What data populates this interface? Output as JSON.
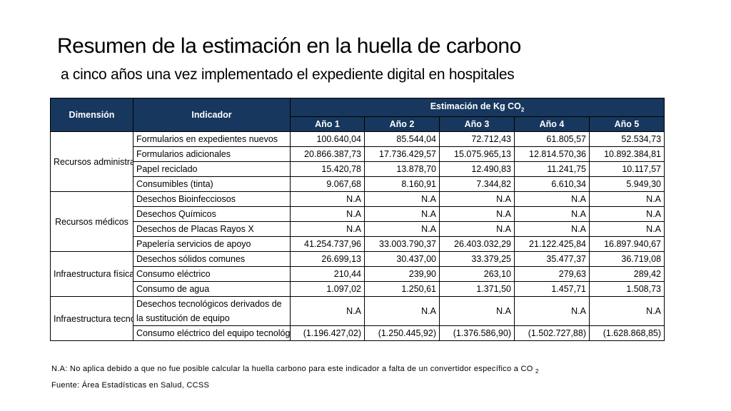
{
  "title": "Resumen de la estimación en la huella de carbono",
  "subtitle": "a cinco años una vez implementado el expediente digital en hospitales",
  "table": {
    "headers": {
      "dimension": "Dimensión",
      "indicator": "Indicador",
      "estimation_prefix": "Estimación de Kg CO",
      "estimation_sub": "2",
      "years": [
        "Año 1",
        "Año 2",
        "Año 3",
        "Año 4",
        "Año 5"
      ]
    },
    "groups": [
      {
        "dimension": "Recursos administrativos",
        "rows": [
          {
            "indicator": "Formularios en expedientes nuevos",
            "values": [
              "100.640,04",
              "85.544,04",
              "72.712,43",
              "61.805,57",
              "52.534,73"
            ]
          },
          {
            "indicator": "Formularios  adicionales",
            "values": [
              "20.866.387,73",
              "17.736.429,57",
              "15.075.965,13",
              "12.814.570,36",
              "10.892.384,81"
            ]
          },
          {
            "indicator": "Papel reciclado",
            "values": [
              "15.420,78",
              "13.878,70",
              "12.490,83",
              "11.241,75",
              "10.117,57"
            ]
          },
          {
            "indicator": "Consumibles (tinta)",
            "values": [
              "9.067,68",
              "8.160,91",
              "7.344,82",
              "6.610,34",
              "5.949,30"
            ]
          }
        ]
      },
      {
        "dimension": "Recursos médicos",
        "rows": [
          {
            "indicator": "Desechos Bioinfecciosos",
            "values": [
              "N.A",
              "N.A",
              "N.A",
              "N.A",
              "N.A"
            ]
          },
          {
            "indicator": "Desechos Químicos",
            "values": [
              "N.A",
              "N.A",
              "N.A",
              "N.A",
              "N.A"
            ]
          },
          {
            "indicator": "Desechos de Placas Rayos X",
            "values": [
              "N.A",
              "N.A",
              "N.A",
              "N.A",
              "N.A"
            ]
          },
          {
            "indicator": "Papelería servicios de apoyo",
            "values": [
              "41.254.737,96",
              "33.003.790,37",
              "26.403.032,29",
              "21.122.425,84",
              "16.897.940,67"
            ]
          }
        ]
      },
      {
        "dimension": "Infraestructura física",
        "rows": [
          {
            "indicator": "Desechos sólidos comunes",
            "values": [
              "26.699,13",
              "30.437,00",
              "33.379,25",
              "35.477,37",
              "36.719,08"
            ]
          },
          {
            "indicator": "Consumo eléctrico",
            "values": [
              "210,44",
              "239,90",
              "263,10",
              "279,63",
              "289,42"
            ]
          },
          {
            "indicator": "Consumo de agua",
            "values": [
              "1.097,02",
              "1.250,61",
              "1.371,50",
              "1.457,71",
              "1.508,73"
            ]
          }
        ]
      },
      {
        "dimension": "Infraestructura tecnológica",
        "rows": [
          {
            "indicator": "Desechos tecnológicos derivados de la sustitución de equipo",
            "values": [
              "N.A",
              "N.A",
              "N.A",
              "N.A",
              "N.A"
            ]
          },
          {
            "indicator": "Consumo eléctrico del equipo tecnológico",
            "values": [
              "(1.196.427,02)",
              "(1.250.445,92)",
              "(1.376.586,90)",
              "(1.502.727,88)",
              "(1.628.868,85)"
            ]
          }
        ]
      }
    ]
  },
  "footnote_prefix": "N.A: No aplica debido a que no fue posible calcular la huella carbono para este indicador a falta de un convertidor específico a CO",
  "footnote_sub": "2",
  "source": "Fuente: Área Estadísticas en Salud, CCSS",
  "colors": {
    "header_bg": "#17375E",
    "header_text": "#FFFFFF"
  }
}
